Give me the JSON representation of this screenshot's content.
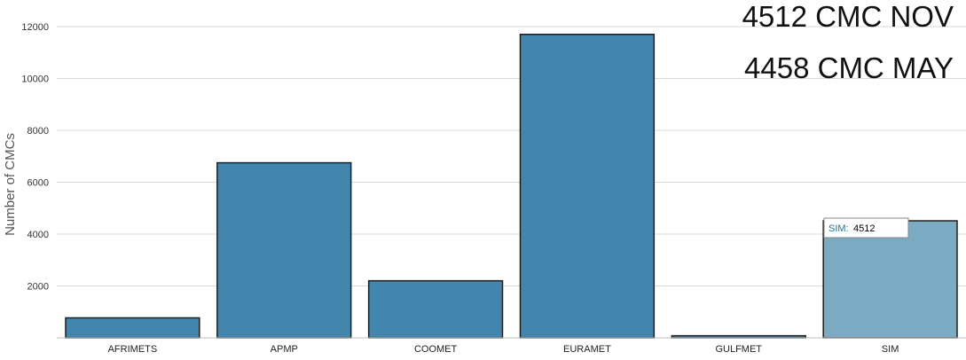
{
  "chart_data": {
    "type": "bar",
    "categories": [
      "AFRIMETS",
      "APMP",
      "COOMET",
      "EURAMET",
      "GULFMET",
      "SIM"
    ],
    "values": [
      770,
      6750,
      2200,
      11700,
      80,
      4512
    ],
    "title": "",
    "xlabel": "",
    "ylabel": "Number of CMCs",
    "ylim": [
      0,
      12000
    ],
    "yticks": [
      2000,
      4000,
      6000,
      8000,
      10000,
      12000
    ],
    "grid": true,
    "bar_color": "#4286ad",
    "highlight_color": "#7babc3",
    "highlight_category": "SIM",
    "tooltip": {
      "name": "SIM:",
      "value": "4512"
    },
    "annotations": [
      "4512 CMC NOV",
      "4458 CMC MAY"
    ]
  }
}
